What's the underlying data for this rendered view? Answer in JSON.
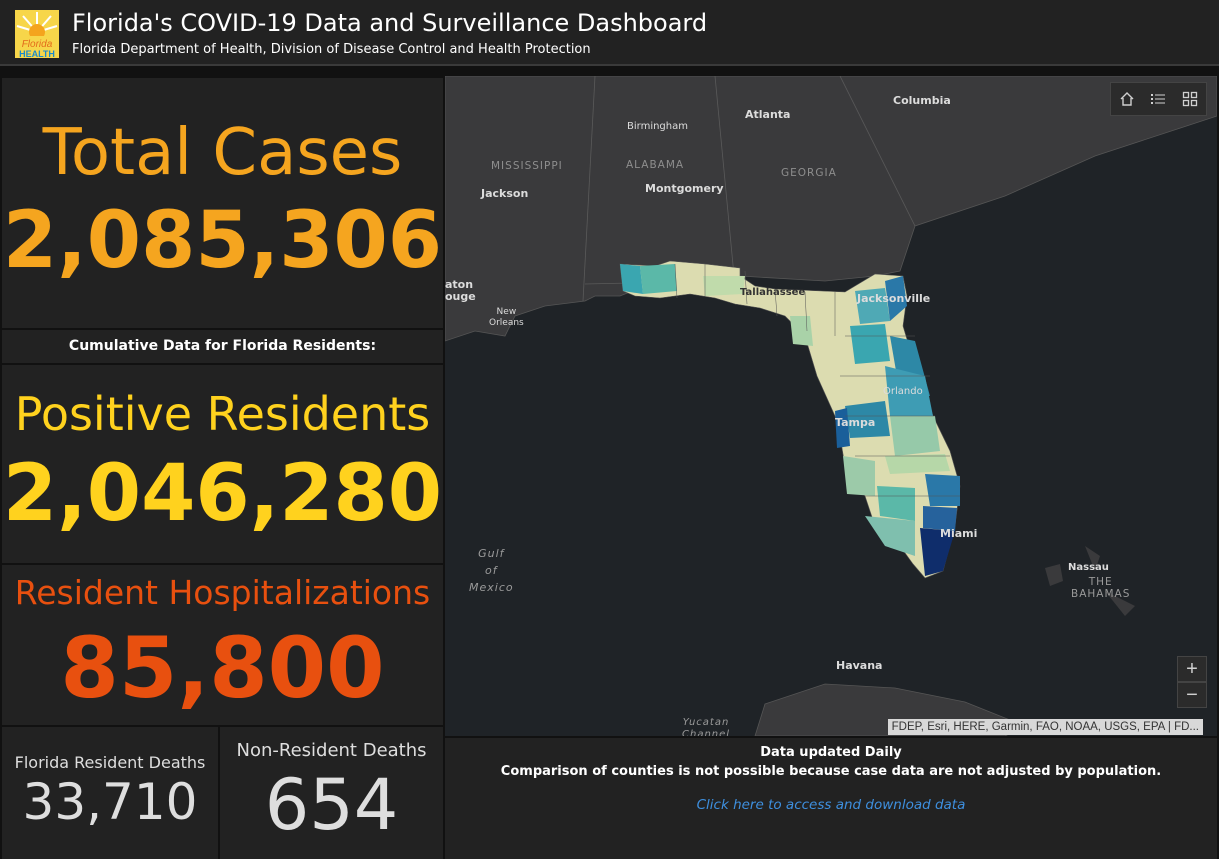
{
  "header": {
    "title": "Florida's COVID-19 Data and Surveillance Dashboard",
    "subtitle": "Florida Department of Health, Division of Disease Control and Health Protection",
    "logo_text_top": "Florida",
    "logo_text_bottom": "HEALTH"
  },
  "stats": {
    "total_label": "Total Cases",
    "total_value": "2,085,306",
    "cumulative_label": "Cumulative Data for Florida Residents:",
    "positive_label": "Positive Residents",
    "positive_value": "2,046,280",
    "hosp_label": "Resident Hospitalizations",
    "hosp_value": "85,800",
    "resident_deaths_label": "Florida Resident Deaths",
    "resident_deaths_value": "33,710",
    "nonresident_deaths_label": "Non-Resident Deaths",
    "nonresident_deaths_value": "654"
  },
  "colors": {
    "total": "#f5a51f",
    "positive": "#ffd21e",
    "hosp": "#e8500f",
    "deaths": "#dedede"
  },
  "map": {
    "labels": {
      "columbia": "Columbia",
      "atlanta": "Atlanta",
      "birmingham": "Birmingham",
      "mississippi": "MISSISSIPPI",
      "alabama": "ALABAMA",
      "georgia": "GEORGIA",
      "montgomery": "Montgomery",
      "jackson": "Jackson",
      "baton_rouge": "aton\nouge",
      "new_orleans": "New\nOrleans",
      "tallahassee": "Tallahassee",
      "jacksonville": "Jacksonville",
      "orlando": "Orlando",
      "tampa": "Tampa",
      "miami": "Miami",
      "nassau": "Nassau",
      "bahamas": "THE\nBAHAMAS",
      "havana": "Havana",
      "gulf": "Gulf\nof\nMexico",
      "yucatan": "Yucatan\nChannel"
    },
    "tools": [
      "home-icon",
      "list-icon",
      "basemap-grid-icon"
    ],
    "zoom_in": "+",
    "zoom_out": "−",
    "attribution": "FDEP, Esri, HERE, Garmin, FAO, NOAA, USGS, EPA | FD..."
  },
  "info": {
    "line1": "Data updated Daily",
    "line2": "Comparison of counties is not possible because case data are not adjusted by population.",
    "link": "Click here to access and download data"
  }
}
